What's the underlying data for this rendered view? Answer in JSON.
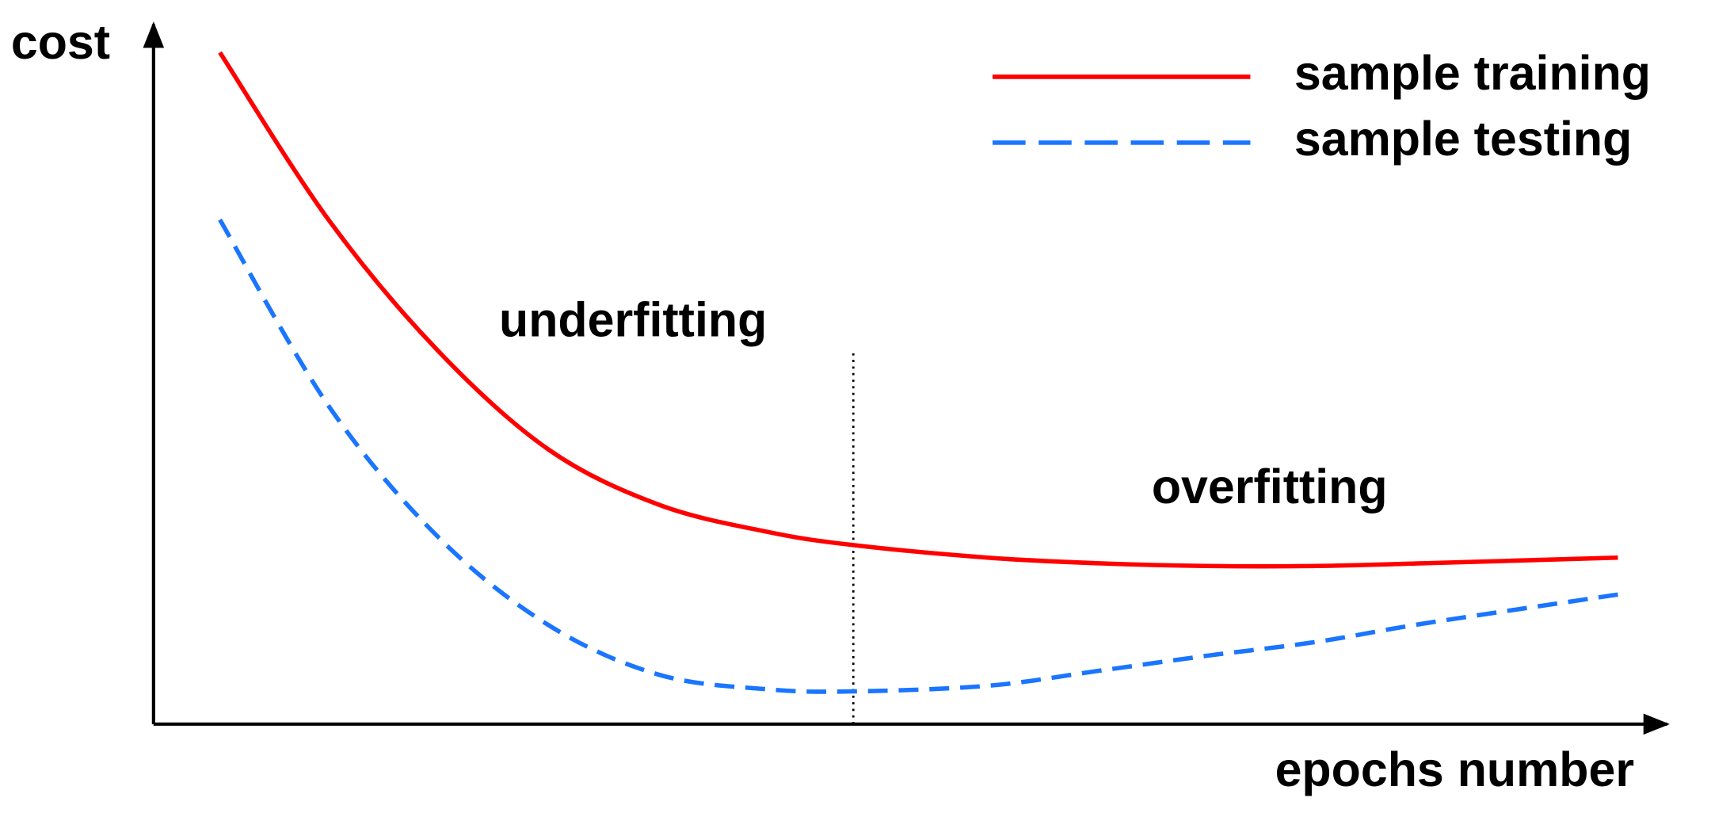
{
  "chart_data": {
    "type": "line",
    "x_label": "epochs number",
    "y_label": "cost",
    "xlim": [
      0,
      100
    ],
    "ylim": [
      0,
      100
    ],
    "x": [
      4.4,
      11.6,
      18.9,
      26.2,
      33.5,
      40.7,
      46.4,
      55.3,
      62.5,
      69.8,
      77.1,
      84.4,
      97.1
    ],
    "series": [
      {
        "name": "sample training",
        "color": "#ff0000",
        "dash": false,
        "values": [
          96.4,
          72.4,
          53.5,
          39.4,
          31.5,
          27.6,
          25.7,
          23.9,
          23.1,
          22.7,
          22.7,
          23.1,
          23.9
        ]
      },
      {
        "name": "sample testing",
        "color": "#1a75ff",
        "dash": true,
        "values": [
          72.4,
          45.7,
          26.8,
          14.2,
          7.1,
          5.0,
          4.7,
          5.5,
          7.6,
          9.8,
          11.8,
          14.5,
          18.6
        ]
      }
    ],
    "divider": {
      "x": 46.4,
      "y": 53.5
    },
    "annotations": [
      "underfitting",
      "overfitting"
    ],
    "legend": "top-right"
  }
}
